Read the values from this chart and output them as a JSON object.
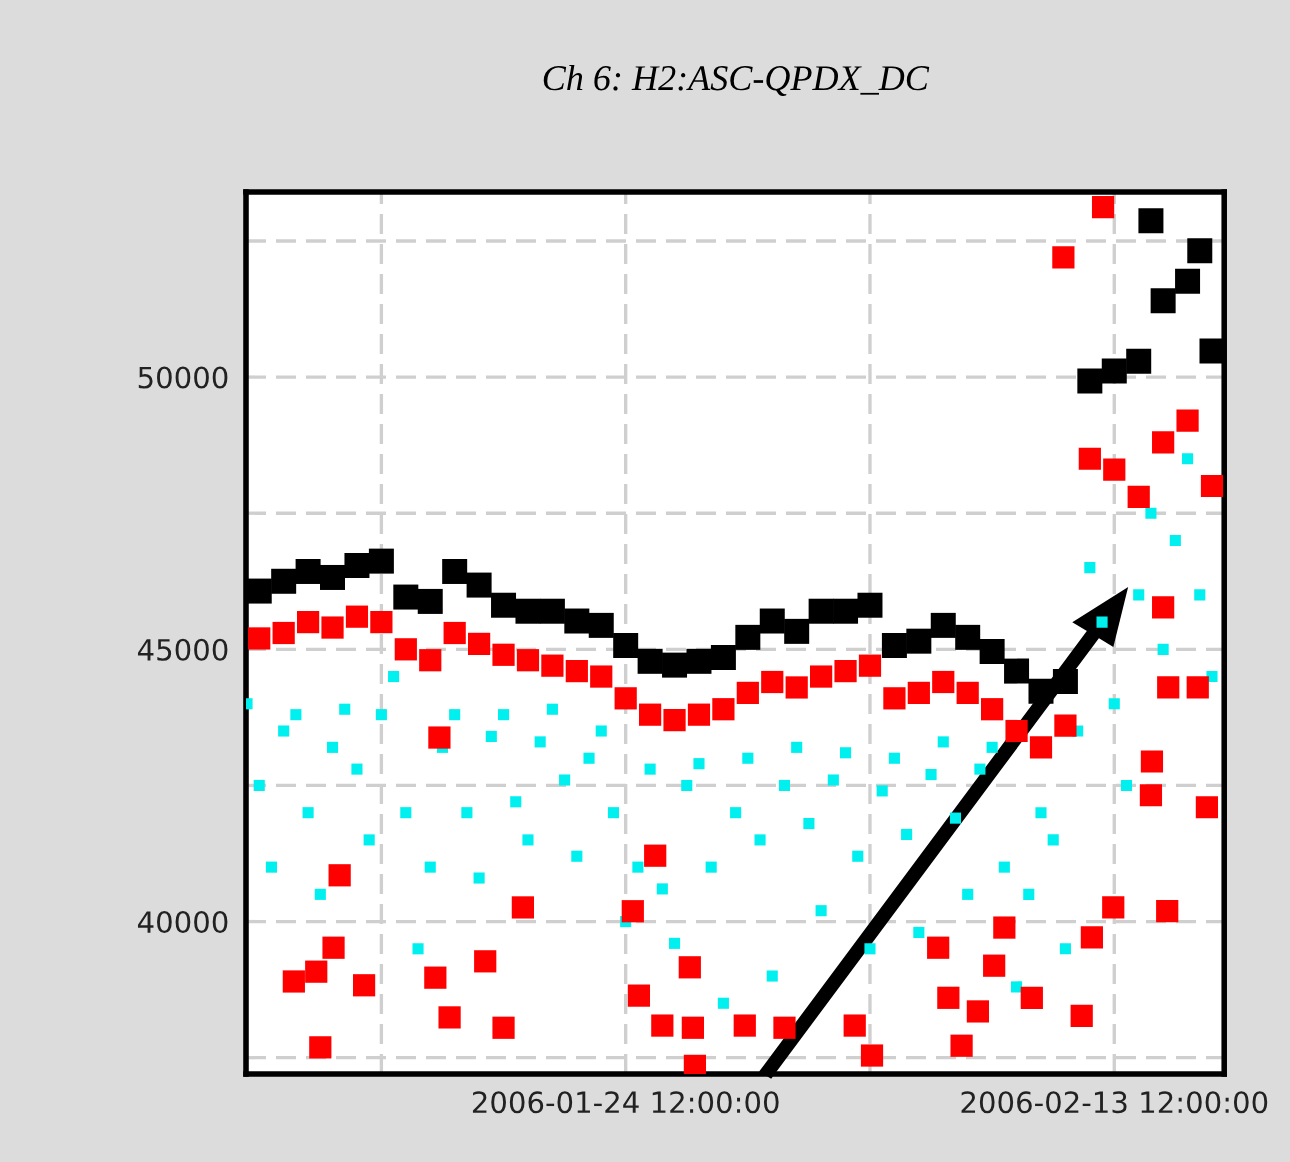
{
  "chart_data": {
    "type": "scatter",
    "title": "Ch 6: H2:ASC-QPDX_DC",
    "marker": "square",
    "grid": true,
    "xlim": [
      "2006-01-08T23:00",
      "2006-02-18T00:00"
    ],
    "xticks": [
      {
        "value": "2006-01-14T12:00",
        "label": null
      },
      {
        "value": "2006-01-24T12:00",
        "label": "2006-01-24 12:00:00"
      },
      {
        "value": "2006-02-03T12:00",
        "label": null
      },
      {
        "value": "2006-02-13T12:00",
        "label": "2006-02-13 12:00:00"
      }
    ],
    "ylim": [
      37200,
      53400
    ],
    "yticks": [
      {
        "value": 37500,
        "label": null
      },
      40000,
      {
        "value": 42500,
        "label": null
      },
      45000,
      {
        "value": 47500,
        "label": null
      },
      50000,
      {
        "value": 52500,
        "label": null
      }
    ],
    "series": [
      {
        "color": "#00f0f0",
        "x": [
          "2006-01-09T00:00",
          "2006-01-09T12:00",
          "2006-01-10T00:00",
          "2006-01-10T12:00",
          "2006-01-11T00:00",
          "2006-01-11T12:00",
          "2006-01-12T00:00",
          "2006-01-12T12:00",
          "2006-01-13T00:00",
          "2006-01-13T12:00",
          "2006-01-14T00:00",
          "2006-01-14T12:00",
          "2006-01-15T00:00",
          "2006-01-15T12:00",
          "2006-01-16T00:00",
          "2006-01-16T12:00",
          "2006-01-17T00:00",
          "2006-01-17T12:00",
          "2006-01-18T00:00",
          "2006-01-18T12:00",
          "2006-01-19T00:00",
          "2006-01-19T12:00",
          "2006-01-20T00:00",
          "2006-01-20T12:00",
          "2006-01-21T00:00",
          "2006-01-21T12:00",
          "2006-01-22T00:00",
          "2006-01-22T12:00",
          "2006-01-23T00:00",
          "2006-01-23T12:00",
          "2006-01-24T00:00",
          "2006-01-24T12:00",
          "2006-01-25T00:00",
          "2006-01-25T12:00",
          "2006-01-26T00:00",
          "2006-01-26T12:00",
          "2006-01-27T00:00",
          "2006-01-27T12:00",
          "2006-01-28T00:00",
          "2006-01-28T12:00",
          "2006-01-29T00:00",
          "2006-01-29T12:00",
          "2006-01-30T00:00",
          "2006-01-30T12:00",
          "2006-01-31T00:00",
          "2006-01-31T12:00",
          "2006-02-01T00:00",
          "2006-02-01T12:00",
          "2006-02-02T00:00",
          "2006-02-02T12:00",
          "2006-02-03T00:00",
          "2006-02-03T12:00",
          "2006-02-04T00:00",
          "2006-02-04T12:00",
          "2006-02-05T00:00",
          "2006-02-05T12:00",
          "2006-02-06T00:00",
          "2006-02-06T12:00",
          "2006-02-07T00:00",
          "2006-02-07T12:00",
          "2006-02-08T00:00",
          "2006-02-08T12:00",
          "2006-02-09T00:00",
          "2006-02-09T12:00",
          "2006-02-10T00:00",
          "2006-02-10T12:00",
          "2006-02-11T00:00",
          "2006-02-11T12:00",
          "2006-02-12T00:00",
          "2006-02-12T12:00",
          "2006-02-13T00:00",
          "2006-02-13T12:00",
          "2006-02-14T00:00",
          "2006-02-14T12:00",
          "2006-02-15T00:00",
          "2006-02-15T12:00",
          "2006-02-16T00:00",
          "2006-02-16T12:00",
          "2006-02-17T00:00",
          "2006-02-17T12:00"
        ],
        "values": [
          44000,
          42500,
          41000,
          43500,
          43800,
          42000,
          40500,
          43200,
          43900,
          42800,
          41500,
          43800,
          44500,
          42000,
          39500,
          41000,
          43200,
          43800,
          42000,
          40800,
          43400,
          43800,
          42200,
          41500,
          43300,
          43900,
          42600,
          41200,
          43000,
          43500,
          42000,
          40000,
          41000,
          42800,
          40600,
          39600,
          42500,
          42900,
          41000,
          38500,
          42000,
          43000,
          41500,
          39000,
          42500,
          43200,
          41800,
          40200,
          42600,
          43100,
          41200,
          39500,
          42400,
          43000,
          41600,
          39800,
          42700,
          43300,
          41900,
          40500,
          42800,
          43200,
          41000,
          38800,
          40500,
          42000,
          41500,
          39500,
          43500,
          46500,
          45500,
          44000,
          42500,
          46000,
          47500,
          45000,
          47000,
          48500,
          46000,
          44500
        ]
      },
      {
        "color": "#ff0000",
        "x": [
          "2006-01-09T12:00",
          "2006-01-10T12:00",
          "2006-01-11T12:00",
          "2006-01-12T12:00",
          "2006-01-13T12:00",
          "2006-01-14T12:00",
          "2006-01-15T12:00",
          "2006-01-16T12:00",
          "2006-01-17T12:00",
          "2006-01-18T12:00",
          "2006-01-19T12:00",
          "2006-01-20T12:00",
          "2006-01-21T12:00",
          "2006-01-22T12:00",
          "2006-01-23T12:00",
          "2006-01-24T12:00",
          "2006-01-25T12:00",
          "2006-01-26T12:00",
          "2006-01-27T12:00",
          "2006-01-28T12:00",
          "2006-01-29T12:00",
          "2006-01-30T12:00",
          "2006-01-31T12:00",
          "2006-02-01T12:00",
          "2006-02-02T12:00",
          "2006-02-03T12:00",
          "2006-02-04T12:00",
          "2006-02-05T12:00",
          "2006-02-06T12:00",
          "2006-02-07T12:00",
          "2006-02-08T12:00",
          "2006-02-09T12:00",
          "2006-02-10T12:00",
          "2006-02-11T12:00",
          "2006-02-12T12:00",
          "2006-02-13T12:00",
          "2006-02-14T12:00",
          "2006-02-15T12:00",
          "2006-02-16T12:00",
          "2006-02-17T12:00",
          "2006-01-12T13:00",
          "2006-01-11T20:00",
          "2006-01-10T22:00",
          "2006-01-13T19:00",
          "2006-01-16T17:00",
          "2006-01-18T18:00",
          "2006-01-20T07:00",
          "2006-01-19T12:00",
          "2006-01-17T07:00",
          "2006-01-12T00:00",
          "2006-01-16T21:00",
          "2006-01-12T19:00",
          "2006-01-24T19:00",
          "2006-01-25T17:00",
          "2006-01-25T01:00",
          "2006-01-26T00:00",
          "2006-01-27T06:00",
          "2006-01-27T08:00",
          "2006-01-27T03:00",
          "2006-01-29T09:00",
          "2006-01-31T00:00",
          "2006-02-02T21:00",
          "2006-02-03T14:00",
          "2006-02-06T07:00",
          "2006-02-06T17:00",
          "2006-02-07T22:00",
          "2006-02-08T14:00",
          "2006-02-09T00:00",
          "2006-02-07T06:00",
          "2006-02-10T03:00",
          "2006-02-12T04:00",
          "2006-02-12T14:00",
          "2006-02-13T11:00",
          "2006-02-15T16:00",
          "2006-02-15T00:00",
          "2006-02-15T01:00",
          "2006-02-17T07:00",
          "2006-02-15T17:00",
          "2006-02-16T22:00",
          "2006-02-15T12:00",
          "2006-02-11T10:00",
          "2006-02-13T01:00"
        ],
        "values": [
          45200,
          45300,
          45500,
          45400,
          45600,
          45500,
          45000,
          44800,
          45300,
          45100,
          44900,
          44800,
          44700,
          44600,
          44500,
          44100,
          43800,
          43700,
          43800,
          43900,
          44200,
          44400,
          44300,
          44500,
          44600,
          44700,
          44100,
          44200,
          44400,
          44200,
          43900,
          43500,
          43200,
          43600,
          48500,
          48300,
          47800,
          48800,
          49200,
          48000,
          39520,
          39080,
          38900,
          38830,
          38970,
          39270,
          40260,
          38050,
          38240,
          37690,
          43380,
          40850,
          40190,
          41210,
          38640,
          38090,
          38050,
          37350,
          39160,
          38090,
          38050,
          38090,
          37540,
          39520,
          38600,
          38350,
          39190,
          39890,
          37720,
          38600,
          38270,
          39710,
          40260,
          40190,
          42320,
          42940,
          42100,
          44300,
          44300,
          45770,
          52200,
          53120
        ]
      },
      {
        "color": "#000000",
        "x": [
          "2006-01-09T12:00",
          "2006-01-10T12:00",
          "2006-01-11T12:00",
          "2006-01-12T12:00",
          "2006-01-13T12:00",
          "2006-01-14T12:00",
          "2006-01-15T12:00",
          "2006-01-16T12:00",
          "2006-01-17T12:00",
          "2006-01-18T12:00",
          "2006-01-19T12:00",
          "2006-01-20T12:00",
          "2006-01-21T12:00",
          "2006-01-22T12:00",
          "2006-01-23T12:00",
          "2006-01-24T12:00",
          "2006-01-25T12:00",
          "2006-01-26T12:00",
          "2006-01-27T12:00",
          "2006-01-28T12:00",
          "2006-01-29T12:00",
          "2006-01-30T12:00",
          "2006-01-31T12:00",
          "2006-02-01T12:00",
          "2006-02-02T12:00",
          "2006-02-03T12:00",
          "2006-02-04T12:00",
          "2006-02-05T12:00",
          "2006-02-06T12:00",
          "2006-02-07T12:00",
          "2006-02-08T12:00",
          "2006-02-09T12:00",
          "2006-02-10T12:00",
          "2006-02-11T12:00",
          "2006-02-12T12:00",
          "2006-02-13T12:00",
          "2006-02-14T12:00",
          "2006-02-15T12:00",
          "2006-02-16T12:00",
          "2006-02-17T12:00",
          "2006-02-15T00:00",
          "2006-02-17T00:00"
        ],
        "values": [
          46070,
          46250,
          46430,
          46320,
          46540,
          46620,
          45960,
          45880,
          46430,
          46180,
          45810,
          45700,
          45700,
          45520,
          45440,
          45070,
          44780,
          44710,
          44780,
          44850,
          45220,
          45520,
          45330,
          45700,
          45700,
          45810,
          45070,
          45150,
          45440,
          45220,
          44960,
          44600,
          44230,
          44410,
          49930,
          50110,
          50290,
          51400,
          51760,
          50480,
          52870,
          52320
        ]
      }
    ]
  }
}
